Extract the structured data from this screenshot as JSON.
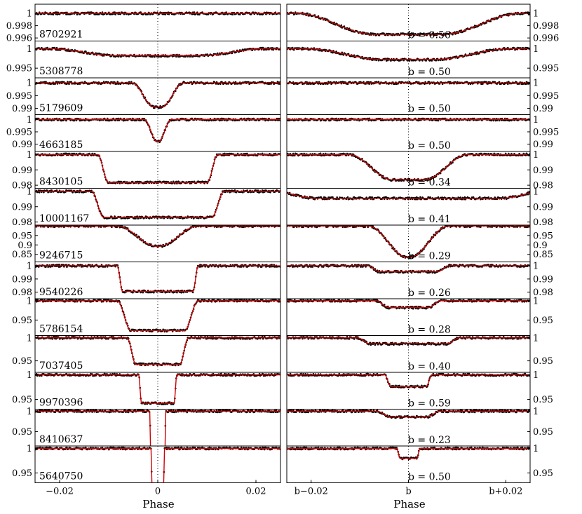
{
  "chart_data": {
    "type": "line",
    "xlabel_left": "Phase",
    "xlabel_right": "Phase",
    "left_xticks": [
      {
        "value": -0.02,
        "label": "−0.02"
      },
      {
        "value": 0,
        "label": "0"
      },
      {
        "value": 0.02,
        "label": "0.02"
      }
    ],
    "right_xticks": [
      {
        "value": -0.02,
        "label": "b−0.02"
      },
      {
        "value": 0,
        "label": "b"
      },
      {
        "value": 0.02,
        "label": "b+0.02"
      }
    ],
    "xlim": [
      -0.025,
      0.025
    ],
    "series_colors": {
      "data": "#000000",
      "model": "#cc0000"
    },
    "panels": [
      {
        "star": "8702921",
        "b_label": "b = 0.56",
        "ylim": [
          0.9955,
          1.0015
        ],
        "yticks": [
          {
            "value": 1,
            "label": "1"
          },
          {
            "value": 0.998,
            "label": "0.998"
          },
          {
            "value": 0.996,
            "label": "0.996"
          }
        ],
        "primary": {
          "depth": 0.0,
          "t14": 0.0,
          "t12": 0.0
        },
        "secondary": {
          "depth": 0.0034,
          "t14": 0.046,
          "t12": 0.016
        }
      },
      {
        "star": "5308778",
        "b_label": "b = 0.50",
        "ylim": [
          0.9925,
          1.002
        ],
        "yticks": [
          {
            "value": 1,
            "label": "1"
          },
          {
            "value": 0.995,
            "label": "0.995"
          }
        ],
        "primary": {
          "depth": 0.0018,
          "t14": 0.044,
          "t12": 0.014
        },
        "secondary": {
          "depth": 0.0028,
          "t14": 0.042,
          "t12": 0.016
        }
      },
      {
        "star": "5179609",
        "b_label": "b = 0.50",
        "ylim": [
          0.9875,
          1.002
        ],
        "yticks": [
          {
            "value": 1,
            "label": "1"
          },
          {
            "value": 0.995,
            "label": "0.995"
          },
          {
            "value": 0.99,
            "label": "0.99"
          }
        ],
        "primary": {
          "depth": 0.0095,
          "t14": 0.0105,
          "t12": 0.0045
        },
        "secondary": {
          "depth": 0.0,
          "t14": 0.0,
          "t12": 0.0
        }
      },
      {
        "star": "4663185",
        "b_label": "b = 0.50",
        "ylim": [
          0.987,
          1.002
        ],
        "yticks": [
          {
            "value": 1,
            "label": "1"
          },
          {
            "value": 0.995,
            "label": "0.995"
          },
          {
            "value": 0.99,
            "label": "0.99"
          }
        ],
        "primary": {
          "depth": 0.009,
          "t14": 0.0055,
          "t12": 0.0026
        },
        "secondary": {
          "depth": 0.0,
          "t14": 0.0,
          "t12": 0.0
        }
      },
      {
        "star": "8430105",
        "b_label": "b = 0.34",
        "ylim": [
          0.978,
          1.002
        ],
        "yticks": [
          {
            "value": 1,
            "label": "1"
          },
          {
            "value": 0.99,
            "label": "0.99"
          },
          {
            "value": 0.98,
            "label": "0.98"
          }
        ],
        "primary": {
          "depth": 0.0182,
          "t14": 0.0245,
          "t12": 0.0022
        },
        "secondary": {
          "depth": 0.0165,
          "t14": 0.0245,
          "t12": 0.009
        }
      },
      {
        "star": "10001167",
        "b_label": "b = 0.41",
        "ylim": [
          0.978,
          1.002
        ],
        "yticks": [
          {
            "value": 1,
            "label": "1"
          },
          {
            "value": 0.99,
            "label": "0.99"
          },
          {
            "value": 0.98,
            "label": "0.98"
          }
        ],
        "primary": {
          "depth": 0.017,
          "t14": 0.027,
          "t12": 0.0025
        },
        "secondary": {
          "depth": 0.0045,
          "t14": 0.056,
          "t12": 0.009
        }
      },
      {
        "star": "9246715",
        "b_label": "b = 0.29",
        "ylim": [
          0.81,
          1.005
        ],
        "yticks": [
          {
            "value": 0.95,
            "label": "0.95"
          },
          {
            "value": 0.9,
            "label": "0.9"
          },
          {
            "value": 0.85,
            "label": "0.85"
          }
        ],
        "primary": {
          "depth": 0.107,
          "t14": 0.0165,
          "t12": 0.008
        },
        "secondary": {
          "depth": 0.165,
          "t14": 0.0165,
          "t12": 0.008
        }
      },
      {
        "star": "9540226",
        "b_label": "b = 0.26",
        "ylim": [
          0.975,
          1.003
        ],
        "yticks": [
          {
            "value": 1,
            "label": "1"
          },
          {
            "value": 0.99,
            "label": "0.99"
          },
          {
            "value": 0.98,
            "label": "0.98"
          }
        ],
        "primary": {
          "depth": 0.0195,
          "t14": 0.0165,
          "t12": 0.0011
        },
        "secondary": {
          "depth": 0.0045,
          "t14": 0.0165,
          "t12": 0.0023
        }
      },
      {
        "star": "5786154",
        "b_label": "b = 0.28",
        "ylim": [
          0.91,
          1.005
        ],
        "yticks": [
          {
            "value": 1,
            "label": "1"
          },
          {
            "value": 0.95,
            "label": "0.95"
          }
        ],
        "primary": {
          "depth": 0.077,
          "t14": 0.0165,
          "t12": 0.0028
        },
        "secondary": {
          "depth": 0.018,
          "t14": 0.0135,
          "t12": 0.0028
        }
      },
      {
        "star": "7037405",
        "b_label": "b = 0.40",
        "ylim": [
          0.925,
          1.005
        ],
        "yticks": [
          {
            "value": 1,
            "label": "1"
          },
          {
            "value": 0.95,
            "label": "0.95"
          }
        ],
        "primary": {
          "depth": 0.0575,
          "t14": 0.0125,
          "t12": 0.0018
        },
        "secondary": {
          "depth": 0.013,
          "t14": 0.021,
          "t12": 0.0027
        }
      },
      {
        "star": "9970396",
        "b_label": "b = 0.59",
        "ylim": [
          0.93,
          1.005
        ],
        "yticks": [
          {
            "value": 1,
            "label": "1"
          },
          {
            "value": 0.95,
            "label": "0.95"
          }
        ],
        "primary": {
          "depth": 0.058,
          "t14": 0.0078,
          "t12": 0.0006
        },
        "secondary": {
          "depth": 0.024,
          "t14": 0.0098,
          "t12": 0.0013
        }
      },
      {
        "star": "8410637",
        "b_label": "b = 0.23",
        "ylim": [
          0.915,
          1.005
        ],
        "yticks": [
          {
            "value": 1,
            "label": "1"
          },
          {
            "value": 0.95,
            "label": "0.95"
          }
        ],
        "primary": {
          "depth": 0.25,
          "t14": 0.0033,
          "t12": 0.0004
        },
        "secondary": {
          "depth": 0.014,
          "t14": 0.013,
          "t12": 0.0028
        }
      },
      {
        "star": "5640750",
        "b_label": "b = 0.50",
        "ylim": [
          0.93,
          1.005
        ],
        "yticks": [
          {
            "value": 1,
            "label": "1"
          },
          {
            "value": 0.95,
            "label": "0.95"
          }
        ],
        "primary": {
          "depth": 0.1,
          "t14": 0.0028,
          "t12": 0.0003
        },
        "secondary": {
          "depth": 0.02,
          "t14": 0.0048,
          "t12": 0.0007
        }
      }
    ]
  }
}
